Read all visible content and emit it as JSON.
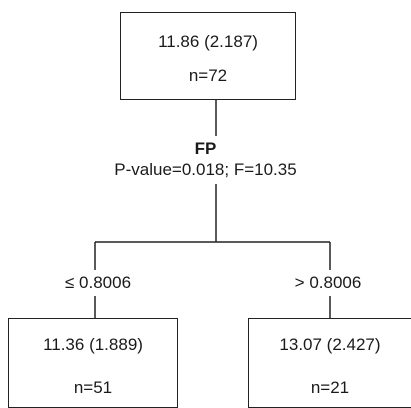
{
  "root": {
    "mean_sd": "11.86 (2.187)",
    "n": "n=72"
  },
  "split": {
    "variable": "FP",
    "stats": "P-value=0.018; F=10.35"
  },
  "edges": {
    "left_condition": "≤ 0.8006",
    "right_condition": "> 0.8006"
  },
  "children": [
    {
      "mean_sd": "11.36 (1.889)",
      "n": "n=51"
    },
    {
      "mean_sd": "13.07 (2.427)",
      "n": "n=21"
    }
  ]
}
